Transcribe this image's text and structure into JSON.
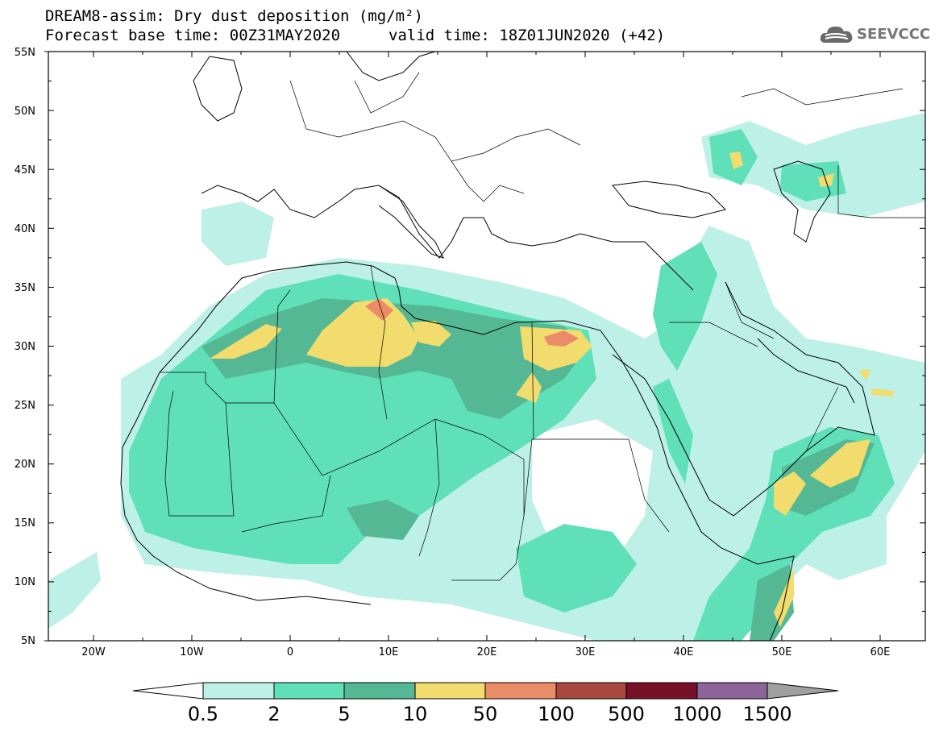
{
  "header": {
    "line1": "DREAM8-assim: Dry dust deposition (mg/m²)",
    "line2_left": "Forecast base time: 00Z31MAY2020",
    "line2_right": "valid time: 18Z01JUN2020 (+42)"
  },
  "logo": {
    "text": "SEEVCCC",
    "icon": "cloud-icon"
  },
  "map": {
    "lat_labels": [
      "55N",
      "50N",
      "45N",
      "40N",
      "35N",
      "30N",
      "25N",
      "20N",
      "15N",
      "10N",
      "5N"
    ],
    "lon_labels": [
      "20W",
      "10W",
      "0",
      "10E",
      "20E",
      "30E",
      "40E",
      "50E",
      "60E"
    ]
  },
  "colorbar": {
    "levels": [
      "0.5",
      "2",
      "5",
      "10",
      "50",
      "100",
      "500",
      "1000",
      "1500"
    ],
    "colors": [
      "#bdf0e6",
      "#5fe0b8",
      "#55b894",
      "#f2dc6e",
      "#eb8c68",
      "#a8483e",
      "#78102a",
      "#8c649a"
    ],
    "under_color": "#ffffff",
    "over_color": "#a0a0a0"
  }
}
